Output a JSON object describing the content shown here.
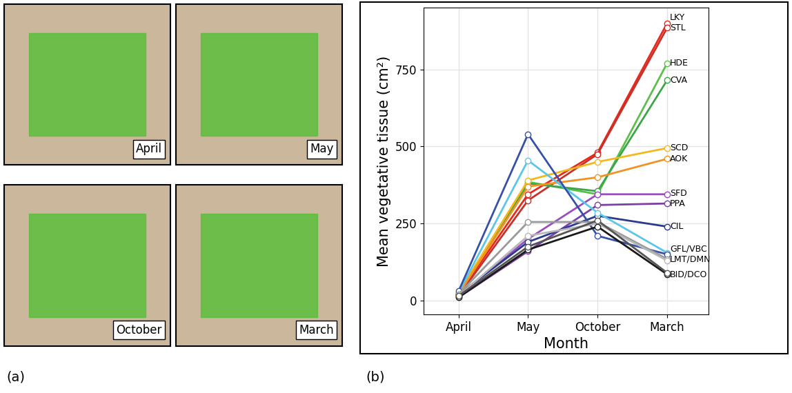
{
  "photo_panel": {
    "label": "(a)",
    "photos": [
      "April",
      "May",
      "October",
      "March"
    ]
  },
  "chart_data": {
    "type": "line",
    "panel_label": "(b)",
    "x_label": "Month",
    "y_label": "Mean vegetative tissue (cm²)",
    "categories": [
      "April",
      "May",
      "October",
      "March"
    ],
    "ylim": [
      -45,
      950
    ],
    "yticks": [
      0,
      250,
      500,
      750
    ],
    "grid": true,
    "marker": "o",
    "series": [
      {
        "name": "LKY",
        "color": "#e8291c",
        "values": [
          20,
          345,
          480,
          900
        ]
      },
      {
        "name": "STL",
        "color": "#c8302a",
        "values": [
          15,
          325,
          475,
          885
        ]
      },
      {
        "name": "HDE",
        "color": "#5cbf4a",
        "values": [
          25,
          385,
          345,
          770
        ]
      },
      {
        "name": "CVA",
        "color": "#3aa64a",
        "values": [
          20,
          380,
          355,
          715
        ]
      },
      {
        "name": "SCD",
        "color": "#f2b81c",
        "values": [
          25,
          390,
          450,
          495
        ]
      },
      {
        "name": "AOK",
        "color": "#f39221",
        "values": [
          20,
          370,
          400,
          460
        ]
      },
      {
        "name": "SFD",
        "color": "#9a4dc0",
        "values": [
          15,
          200,
          345,
          345
        ]
      },
      {
        "name": "PPA",
        "color": "#7b3fa6",
        "values": [
          10,
          160,
          310,
          315
        ]
      },
      {
        "name": "CIL",
        "color": "#2b3a8f",
        "values": [
          20,
          190,
          275,
          240
        ]
      },
      {
        "name": "GFL/VBC",
        "color": "#5bc5ea",
        "values": [
          25,
          455,
          285,
          155
        ]
      },
      {
        "name": null,
        "color": "#3650a8",
        "values": [
          30,
          540,
          210,
          150
        ]
      },
      {
        "name": "LMT/DMN",
        "color": "#9a9a9a",
        "values": [
          20,
          255,
          255,
          135
        ]
      },
      {
        "name": null,
        "color": "#b8b8b8",
        "values": [
          15,
          210,
          250,
          130
        ]
      },
      {
        "name": "BID/DCO",
        "color": "#1a1a1a",
        "values": [
          10,
          165,
          240,
          85
        ]
      },
      {
        "name": null,
        "color": "#555555",
        "values": [
          15,
          175,
          260,
          90
        ]
      }
    ]
  }
}
